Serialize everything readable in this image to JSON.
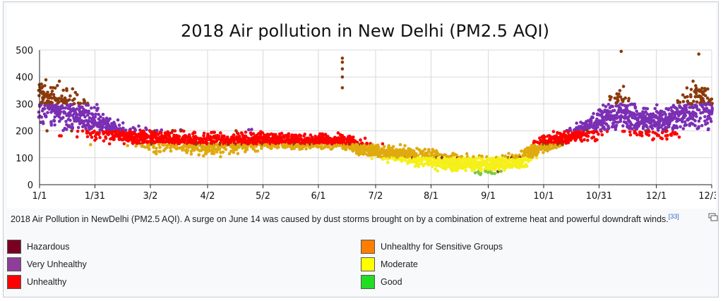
{
  "chart_data": {
    "type": "scatter",
    "title": "2018 Air pollution in New Delhi (PM2.5 AQI)",
    "xlabel": "",
    "ylabel": "",
    "ylim": [
      0,
      500
    ],
    "xlim_days": [
      1,
      365
    ],
    "yticks": [
      0,
      100,
      200,
      300,
      400,
      500
    ],
    "xticks": [
      {
        "label": "1/1",
        "day": 1
      },
      {
        "label": "1/31",
        "day": 31
      },
      {
        "label": "3/2",
        "day": 61
      },
      {
        "label": "4/2",
        "day": 92
      },
      {
        "label": "5/2",
        "day": 122
      },
      {
        "label": "6/1",
        "day": 152
      },
      {
        "label": "7/2",
        "day": 183
      },
      {
        "label": "8/1",
        "day": 213
      },
      {
        "label": "9/1",
        "day": 244
      },
      {
        "label": "10/1",
        "day": 274
      },
      {
        "label": "10/31",
        "day": 304
      },
      {
        "label": "12/1",
        "day": 335
      },
      {
        "label": "12/31",
        "day": 365
      }
    ],
    "grid": true,
    "daily_typical_aqi": [
      {
        "day": 1,
        "mean": 310,
        "spread": 120
      },
      {
        "day": 15,
        "mean": 280,
        "spread": 110
      },
      {
        "day": 31,
        "mean": 230,
        "spread": 90
      },
      {
        "day": 45,
        "mean": 190,
        "spread": 50
      },
      {
        "day": 61,
        "mean": 165,
        "spread": 60
      },
      {
        "day": 75,
        "mean": 160,
        "spread": 55
      },
      {
        "day": 92,
        "mean": 150,
        "spread": 60
      },
      {
        "day": 110,
        "mean": 160,
        "spread": 50
      },
      {
        "day": 122,
        "mean": 165,
        "spread": 45
      },
      {
        "day": 135,
        "mean": 160,
        "spread": 40
      },
      {
        "day": 152,
        "mean": 160,
        "spread": 35
      },
      {
        "day": 165,
        "mean": 160,
        "spread": 40
      },
      {
        "day": 183,
        "mean": 125,
        "spread": 40
      },
      {
        "day": 200,
        "mean": 105,
        "spread": 45
      },
      {
        "day": 213,
        "mean": 95,
        "spread": 45
      },
      {
        "day": 230,
        "mean": 80,
        "spread": 45
      },
      {
        "day": 244,
        "mean": 70,
        "spread": 45
      },
      {
        "day": 260,
        "mean": 90,
        "spread": 50
      },
      {
        "day": 274,
        "mean": 150,
        "spread": 40
      },
      {
        "day": 290,
        "mean": 185,
        "spread": 45
      },
      {
        "day": 304,
        "mean": 230,
        "spread": 80
      },
      {
        "day": 315,
        "mean": 280,
        "spread": 110
      },
      {
        "day": 325,
        "mean": 230,
        "spread": 90
      },
      {
        "day": 335,
        "mean": 230,
        "spread": 80
      },
      {
        "day": 345,
        "mean": 240,
        "spread": 90
      },
      {
        "day": 355,
        "mean": 300,
        "spread": 120
      },
      {
        "day": 365,
        "mean": 280,
        "spread": 110
      }
    ],
    "notable_points": [
      {
        "day": 165,
        "aqi": 470
      },
      {
        "day": 165,
        "aqi": 455
      },
      {
        "day": 165,
        "aqi": 430
      },
      {
        "day": 165,
        "aqi": 400
      },
      {
        "day": 165,
        "aqi": 360
      },
      {
        "day": 316,
        "aqi": 495
      },
      {
        "day": 358,
        "aqi": 485
      }
    ],
    "categories": [
      {
        "name": "Good",
        "min": 0,
        "max": 50,
        "color": "#7ec843"
      },
      {
        "name": "Moderate",
        "min": 51,
        "max": 100,
        "color": "#f5f01a"
      },
      {
        "name": "Unhealthy for Sensitive Groups",
        "min": 101,
        "max": 150,
        "color": "#e0aa0f"
      },
      {
        "name": "Unhealthy",
        "min": 151,
        "max": 200,
        "color": "#ff0000"
      },
      {
        "name": "Very Unhealthy",
        "min": 201,
        "max": 300,
        "color": "#7b2fb4"
      },
      {
        "name": "Hazardous",
        "min": 301,
        "max": 500,
        "color": "#8b3a0c"
      }
    ]
  },
  "caption": {
    "text": "2018 Air Pollution in NewDelhi (PM2.5 AQI). A surge on June 14 was caused by dust storms brought on by a combination of extreme heat and powerful downdraft winds.",
    "reference": "[33]"
  },
  "legend": [
    {
      "label": "Hazardous",
      "color": "#7a0022"
    },
    {
      "label": "Unhealthy for Sensitive Groups",
      "color": "#ff7e00"
    },
    {
      "label": "Very Unhealthy",
      "color": "#8e3d9a"
    },
    {
      "label": "Moderate",
      "color": "#ffff00"
    },
    {
      "label": "Unhealthy",
      "color": "#ff0000"
    },
    {
      "label": "Good",
      "color": "#22dd22"
    }
  ]
}
